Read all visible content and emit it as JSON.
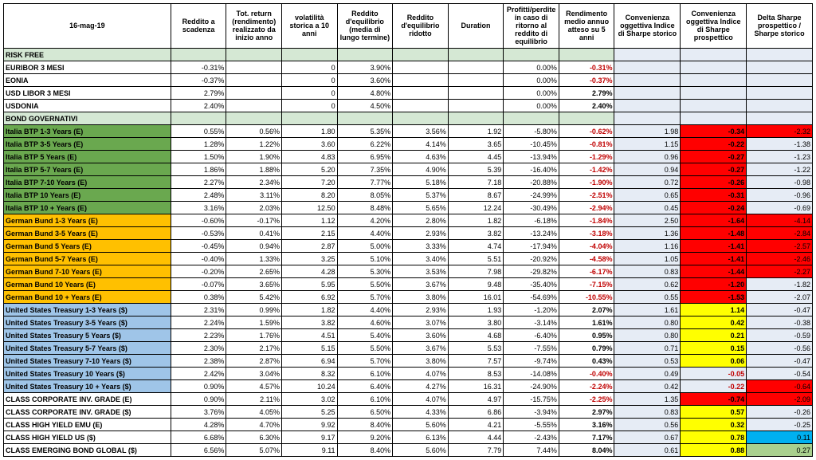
{
  "date": "16-mag-19",
  "headers": [
    "Reddito a scadenza",
    "Tot. return (rendimento) realizzato da inizio anno",
    "volatilità storica a 10 anni",
    "Reddito d'equilibrio (media di lungo termine)",
    "Reddito d'equilibrio ridotto",
    "Duration",
    "Profitti/perdite in caso di ritorno al reddito di equilibrio",
    "Rendimento medio annuo atteso su 5 anni",
    "Convenienza oggettiva Indice di Sharpe storico",
    "Convenienza oggettiva Indice di Sharpe prospettico",
    "Delta Sharpe prospettico / Sharpe storico"
  ],
  "sections": [
    {
      "name": "RISK FREE",
      "rows": [
        {
          "label": "EURIBOR 3 MESI",
          "c": [
            "-0.31%",
            "",
            "0",
            "3.90%",
            "",
            "",
            "0.00%",
            "-0.31%",
            "",
            "",
            ""
          ],
          "rowClass": "row-white"
        },
        {
          "label": "EONIA",
          "c": [
            "-0.37%",
            "",
            "0",
            "3.60%",
            "",
            "",
            "0.00%",
            "-0.37%",
            "",
            "",
            ""
          ],
          "rowClass": "row-white"
        },
        {
          "label": "USD LIBOR 3 MESI",
          "c": [
            "2.79%",
            "",
            "0",
            "4.80%",
            "",
            "",
            "0.00%",
            "2.79%",
            "",
            "",
            ""
          ],
          "rowClass": "row-white"
        },
        {
          "label": "USDONIA",
          "c": [
            "2.40%",
            "",
            "0",
            "4.50%",
            "",
            "",
            "0.00%",
            "2.40%",
            "",
            "",
            ""
          ],
          "rowClass": "row-white"
        }
      ]
    },
    {
      "name": "BOND GOVERNATIVI",
      "rows": [
        {
          "label": "Italia BTP 1-3 Years (E)",
          "c": [
            "0.55%",
            "0.56%",
            "1.80",
            "5.35%",
            "3.56%",
            "1.92",
            "-5.80%",
            "-0.62%",
            "1.98",
            "-0.34",
            "-2.32"
          ],
          "rowClass": "row-green"
        },
        {
          "label": "Italia BTP 3-5 Years (E)",
          "c": [
            "1.28%",
            "1.22%",
            "3.60",
            "6.22%",
            "4.14%",
            "3.65",
            "-10.45%",
            "-0.81%",
            "1.15",
            "-0.22",
            "-1.38"
          ],
          "rowClass": "row-green"
        },
        {
          "label": "Italia BTP 5 Years (E)",
          "c": [
            "1.50%",
            "1.90%",
            "4.83",
            "6.95%",
            "4.63%",
            "4.45",
            "-13.94%",
            "-1.29%",
            "0.96",
            "-0.27",
            "-1.23"
          ],
          "rowClass": "row-green"
        },
        {
          "label": "Italia BTP 5-7 Years (E)",
          "c": [
            "1.86%",
            "1.88%",
            "5.20",
            "7.35%",
            "4.90%",
            "5.39",
            "-16.40%",
            "-1.42%",
            "0.94",
            "-0.27",
            "-1.22"
          ],
          "rowClass": "row-green"
        },
        {
          "label": "Italia BTP 7-10 Years (E)",
          "c": [
            "2.27%",
            "2.34%",
            "7.20",
            "7.77%",
            "5.18%",
            "7.18",
            "-20.88%",
            "-1.90%",
            "0.72",
            "-0.26",
            "-0.98"
          ],
          "rowClass": "row-green"
        },
        {
          "label": "Italia BTP 10 Years (E)",
          "c": [
            "2.48%",
            "3.11%",
            "8.20",
            "8.05%",
            "5.37%",
            "8.67",
            "-24.99%",
            "-2.51%",
            "0.65",
            "-0.31",
            "-0.96"
          ],
          "rowClass": "row-green"
        },
        {
          "label": "Italia BTP 10 + Years (E)",
          "c": [
            "3.16%",
            "2.03%",
            "12.50",
            "8.48%",
            "5.65%",
            "12.24",
            "-30.49%",
            "-2.94%",
            "0.45",
            "-0.24",
            "-0.69"
          ],
          "rowClass": "row-green"
        },
        {
          "label": "German Bund 1-3 Years (E)",
          "c": [
            "-0.60%",
            "-0.17%",
            "1.12",
            "4.20%",
            "2.80%",
            "1.82",
            "-6.18%",
            "-1.84%",
            "2.50",
            "-1.64",
            "-4.14"
          ],
          "rowClass": "row-orange"
        },
        {
          "label": "German Bund 3-5 Years (E)",
          "c": [
            "-0.53%",
            "0.41%",
            "2.15",
            "4.40%",
            "2.93%",
            "3.82",
            "-13.24%",
            "-3.18%",
            "1.36",
            "-1.48",
            "-2.84"
          ],
          "rowClass": "row-orange"
        },
        {
          "label": "German Bund 5 Years (E)",
          "c": [
            "-0.45%",
            "0.94%",
            "2.87",
            "5.00%",
            "3.33%",
            "4.74",
            "-17.94%",
            "-4.04%",
            "1.16",
            "-1.41",
            "-2.57"
          ],
          "rowClass": "row-orange"
        },
        {
          "label": "German Bund 5-7 Years (E)",
          "c": [
            "-0.40%",
            "1.33%",
            "3.25",
            "5.10%",
            "3.40%",
            "5.51",
            "-20.92%",
            "-4.58%",
            "1.05",
            "-1.41",
            "-2.46"
          ],
          "rowClass": "row-orange"
        },
        {
          "label": "German Bund 7-10 Years (E)",
          "c": [
            "-0.20%",
            "2.65%",
            "4.28",
            "5.30%",
            "3.53%",
            "7.98",
            "-29.82%",
            "-6.17%",
            "0.83",
            "-1.44",
            "-2.27"
          ],
          "rowClass": "row-orange"
        },
        {
          "label": "German Bund 10 Years (E)",
          "c": [
            "-0.07%",
            "3.65%",
            "5.95",
            "5.50%",
            "3.67%",
            "9.48",
            "-35.40%",
            "-7.15%",
            "0.62",
            "-1.20",
            "-1.82"
          ],
          "rowClass": "row-orange"
        },
        {
          "label": "German Bund 10 + Years (E)",
          "c": [
            "0.38%",
            "5.42%",
            "6.92",
            "5.70%",
            "3.80%",
            "16.01",
            "-54.69%",
            "-10.55%",
            "0.55",
            "-1.53",
            "-2.07"
          ],
          "rowClass": "row-orange"
        },
        {
          "label": "United States Treasury 1-3 Years ($)",
          "c": [
            "2.31%",
            "0.99%",
            "1.82",
            "4.40%",
            "2.93%",
            "1.93",
            "-1.20%",
            "2.07%",
            "1.61",
            "1.14",
            "-0.47"
          ],
          "rowClass": "row-blue"
        },
        {
          "label": "United States Treasury 3-5 Years ($)",
          "c": [
            "2.24%",
            "1.59%",
            "3.82",
            "4.60%",
            "3.07%",
            "3.80",
            "-3.14%",
            "1.61%",
            "0.80",
            "0.42",
            "-0.38"
          ],
          "rowClass": "row-blue"
        },
        {
          "label": "United States Treasury 5 Years ($)",
          "c": [
            "2.23%",
            "1.76%",
            "4.51",
            "5.40%",
            "3.60%",
            "4.68",
            "-6.40%",
            "0.95%",
            "0.80",
            "0.21",
            "-0.59"
          ],
          "rowClass": "row-blue"
        },
        {
          "label": "United States Treasury 5-7 Years ($)",
          "c": [
            "2.30%",
            "2.17%",
            "5.15",
            "5.50%",
            "3.67%",
            "5.53",
            "-7.55%",
            "0.79%",
            "0.71",
            "0.15",
            "-0.56"
          ],
          "rowClass": "row-blue"
        },
        {
          "label": "United States Treasury 7-10 Years ($)",
          "c": [
            "2.38%",
            "2.87%",
            "6.94",
            "5.70%",
            "3.80%",
            "7.57",
            "-9.74%",
            "0.43%",
            "0.53",
            "0.06",
            "-0.47"
          ],
          "rowClass": "row-blue"
        },
        {
          "label": "United States Treasury 10 Years ($)",
          "c": [
            "2.42%",
            "3.04%",
            "8.32",
            "6.10%",
            "4.07%",
            "8.53",
            "-14.08%",
            "-0.40%",
            "0.49",
            "-0.05",
            "-0.54"
          ],
          "rowClass": "row-blue"
        },
        {
          "label": "United States Treasury 10 + Years ($)",
          "c": [
            "0.90%",
            "4.57%",
            "10.24",
            "6.40%",
            "4.27%",
            "16.31",
            "-24.90%",
            "-2.24%",
            "0.42",
            "-0.22",
            "-0.64"
          ],
          "rowClass": "row-blue"
        },
        {
          "label": "CLASS CORPORATE INV. GRADE (E)",
          "c": [
            "0.90%",
            "2.11%",
            "3.02",
            "6.10%",
            "4.07%",
            "4.97",
            "-15.75%",
            "-2.25%",
            "1.35",
            "-0.74",
            "-2.09"
          ],
          "rowClass": "row-white"
        },
        {
          "label": "CLASS CORPORATE INV. GRADE ($)",
          "c": [
            "3.76%",
            "4.05%",
            "5.25",
            "6.50%",
            "4.33%",
            "6.86",
            "-3.94%",
            "2.97%",
            "0.83",
            "0.57",
            "-0.26"
          ],
          "rowClass": "row-white"
        },
        {
          "label": "CLASS HIGH YIELD EMU (E)",
          "c": [
            "4.28%",
            "4.70%",
            "9.92",
            "8.40%",
            "5.60%",
            "4.21",
            "-5.55%",
            "3.16%",
            "0.56",
            "0.32",
            "-0.25"
          ],
          "rowClass": "row-white"
        },
        {
          "label": "CLASS HIGH YIELD US ($)",
          "c": [
            "6.68%",
            "6.30%",
            "9.17",
            "9.20%",
            "6.13%",
            "4.44",
            "-2.43%",
            "7.17%",
            "0.67",
            "0.78",
            "0.11"
          ],
          "rowClass": "row-white"
        },
        {
          "label": "CLASS EMERGING BOND GLOBAL ($)",
          "c": [
            "6.56%",
            "5.07%",
            "9.11",
            "8.40%",
            "5.60%",
            "7.79",
            "7.44%",
            "8.04%",
            "0.61",
            "0.88",
            "0.27"
          ],
          "rowClass": "row-white"
        }
      ]
    }
  ],
  "styling": {
    "col8_neg_red": true,
    "col8_bold": true,
    "col7_neg_red_if_riskfree": true,
    "convenienza_palette": {
      "blueCell": "#e6ecf5",
      "yellow": "#ffff00",
      "red": "#ff0000",
      "lightblue": "#00b0f0",
      "lightgreen": "#a9d08e"
    }
  }
}
